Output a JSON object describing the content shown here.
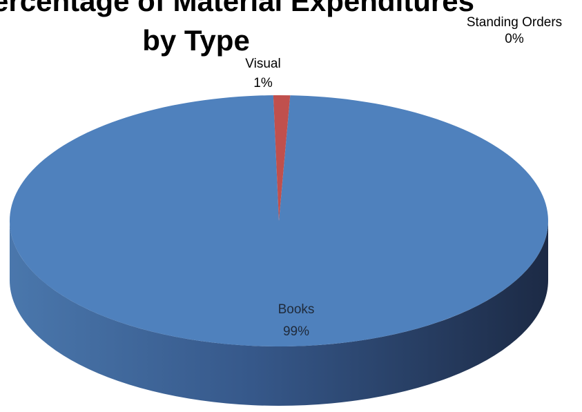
{
  "chart_data": {
    "type": "pie",
    "style": "3d",
    "title_lines": [
      "Percentage of Material Expenditures",
      "by Type"
    ],
    "slices": [
      {
        "label": "Books",
        "value": 99,
        "percent_text": "99%",
        "color": "#4f81bd"
      },
      {
        "label": "Visual",
        "value": 1,
        "percent_text": "1%",
        "color": "#c0504d"
      },
      {
        "label": "Standing Orders",
        "value": 0,
        "percent_text": "0%",
        "color": "#9bbb59"
      }
    ],
    "legend": "none"
  }
}
